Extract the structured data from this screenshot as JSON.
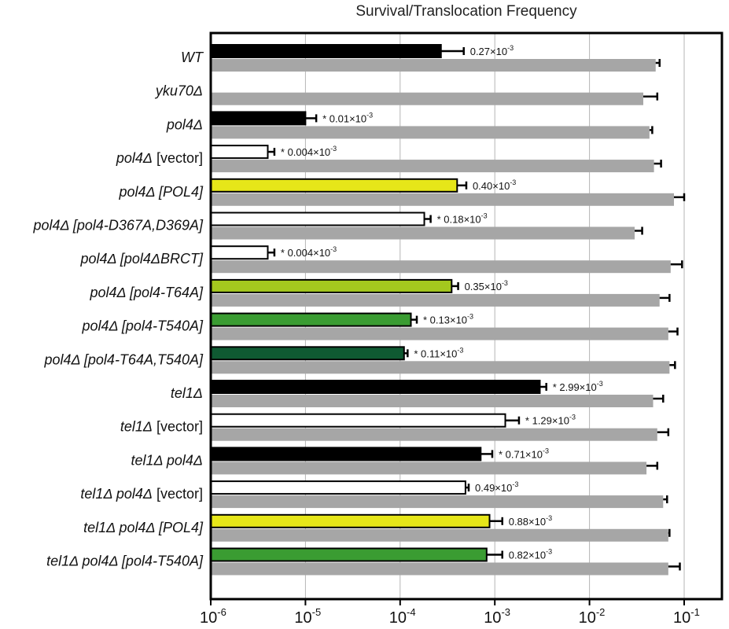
{
  "chart_data": {
    "type": "bar",
    "title": "Survival/Translocation Frequency",
    "xscale": "log",
    "xlim": [
      1e-06,
      0.3
    ],
    "grid": true,
    "xticks": [
      {
        "base": "10",
        "exp": "-6"
      },
      {
        "base": "10",
        "exp": "-5"
      },
      {
        "base": "10",
        "exp": "-4"
      },
      {
        "base": "10",
        "exp": "-3"
      },
      {
        "base": "10",
        "exp": "-2"
      },
      {
        "base": "10",
        "exp": "-1"
      }
    ],
    "series_colors": {
      "black": "#000000",
      "white": "#ffffff",
      "yellow": "#e6e619",
      "lime": "#a4c81e",
      "green": "#3a9c32",
      "darkgreen": "#0f5a32",
      "survival": "#a6a6a6"
    },
    "rows": [
      {
        "label": [
          {
            "t": "WT",
            "i": true
          }
        ],
        "translocation": 0.00027,
        "translocation_err": 0.00047,
        "fill": "black",
        "value_label": {
          "star": false,
          "num": "0.27×10",
          "exp": "-3"
        },
        "survival": 0.05,
        "survival_err": 0.055
      },
      {
        "label": [
          {
            "t": "yku70Δ",
            "i": true
          }
        ],
        "translocation": null,
        "translocation_err": null,
        "fill": "black",
        "value_label": null,
        "survival": 0.037,
        "survival_err": 0.052
      },
      {
        "label": [
          {
            "t": "pol4Δ",
            "i": true
          }
        ],
        "translocation": 1e-05,
        "translocation_err": 1.3e-05,
        "fill": "black",
        "value_label": {
          "star": true,
          "num": "0.01×10",
          "exp": "-3"
        },
        "survival": 0.043,
        "survival_err": 0.046
      },
      {
        "label": [
          {
            "t": "pol4Δ",
            "i": true
          },
          {
            "t": " [vector]",
            "i": false
          }
        ],
        "translocation": 4e-06,
        "translocation_err": 4.7e-06,
        "fill": "white",
        "value_label": {
          "star": true,
          "num": "0.004×10",
          "exp": "-3"
        },
        "survival": 0.048,
        "survival_err": 0.057
      },
      {
        "label": [
          {
            "t": "pol4Δ [POL4]",
            "i": true
          }
        ],
        "translocation": 0.0004,
        "translocation_err": 0.0005,
        "fill": "yellow",
        "value_label": {
          "star": false,
          "num": "0.40×10",
          "exp": "-3"
        },
        "survival": 0.078,
        "survival_err": 0.1
      },
      {
        "label": [
          {
            "t": "pol4Δ [pol4-D367A,D369A]",
            "i": true
          }
        ],
        "translocation": 0.00018,
        "translocation_err": 0.00021,
        "fill": "white",
        "value_label": {
          "star": true,
          "num": "0.18×10",
          "exp": "-3"
        },
        "survival": 0.03,
        "survival_err": 0.036
      },
      {
        "label": [
          {
            "t": "pol4Δ [pol4ΔBRCT]",
            "i": true
          }
        ],
        "translocation": 4e-06,
        "translocation_err": 4.7e-06,
        "fill": "white",
        "value_label": {
          "star": true,
          "num": "0.004×10",
          "exp": "-3"
        },
        "survival": 0.072,
        "survival_err": 0.095
      },
      {
        "label": [
          {
            "t": "pol4Δ [pol4-T64A]",
            "i": true
          }
        ],
        "translocation": 0.00035,
        "translocation_err": 0.00041,
        "fill": "lime",
        "value_label": {
          "star": false,
          "num": "0.35×10",
          "exp": "-3"
        },
        "survival": 0.055,
        "survival_err": 0.07
      },
      {
        "label": [
          {
            "t": "pol4Δ [pol4-T540A]",
            "i": true
          }
        ],
        "translocation": 0.00013,
        "translocation_err": 0.00015,
        "fill": "green",
        "value_label": {
          "star": true,
          "num": "0.13×10",
          "exp": "-3"
        },
        "survival": 0.068,
        "survival_err": 0.085
      },
      {
        "label": [
          {
            "t": "pol4Δ [pol4-T64A,T540A]",
            "i": true
          }
        ],
        "translocation": 0.00011,
        "translocation_err": 0.00012,
        "fill": "darkgreen",
        "value_label": {
          "star": true,
          "num": "0.11×10",
          "exp": "-3"
        },
        "survival": 0.07,
        "survival_err": 0.08
      },
      {
        "label": [
          {
            "t": "tel1Δ",
            "i": true
          }
        ],
        "translocation": 0.00299,
        "translocation_err": 0.0035,
        "fill": "black",
        "value_label": {
          "star": true,
          "num": "2.99×10",
          "exp": "-3"
        },
        "survival": 0.047,
        "survival_err": 0.06
      },
      {
        "label": [
          {
            "t": "tel1Δ",
            "i": true
          },
          {
            "t": " [vector]",
            "i": false
          }
        ],
        "translocation": 0.00129,
        "translocation_err": 0.0018,
        "fill": "white",
        "value_label": {
          "star": true,
          "num": "1.29×10",
          "exp": "-3"
        },
        "survival": 0.052,
        "survival_err": 0.068
      },
      {
        "label": [
          {
            "t": "tel1Δ pol4Δ",
            "i": true
          }
        ],
        "translocation": 0.00071,
        "translocation_err": 0.00094,
        "fill": "black",
        "value_label": {
          "star": true,
          "num": "0.71×10",
          "exp": "-3"
        },
        "survival": 0.04,
        "survival_err": 0.052
      },
      {
        "label": [
          {
            "t": "tel1Δ pol4Δ",
            "i": true
          },
          {
            "t": " [vector]",
            "i": false
          }
        ],
        "translocation": 0.00049,
        "translocation_err": 0.00053,
        "fill": "white",
        "value_label": {
          "star": false,
          "num": "0.49×10",
          "exp": "-3"
        },
        "survival": 0.06,
        "survival_err": 0.066
      },
      {
        "label": [
          {
            "t": "tel1Δ pol4Δ [POL4]",
            "i": true
          }
        ],
        "translocation": 0.00088,
        "translocation_err": 0.0012,
        "fill": "yellow",
        "value_label": {
          "star": false,
          "num": "0.88×10",
          "exp": "-3"
        },
        "survival": 0.068,
        "survival_err": 0.07
      },
      {
        "label": [
          {
            "t": "tel1Δ pol4Δ [pol4-T540A]",
            "i": true
          }
        ],
        "translocation": 0.00082,
        "translocation_err": 0.0012,
        "fill": "green",
        "value_label": {
          "star": false,
          "num": "0.82×10",
          "exp": "-3"
        },
        "survival": 0.068,
        "survival_err": 0.09
      }
    ]
  }
}
